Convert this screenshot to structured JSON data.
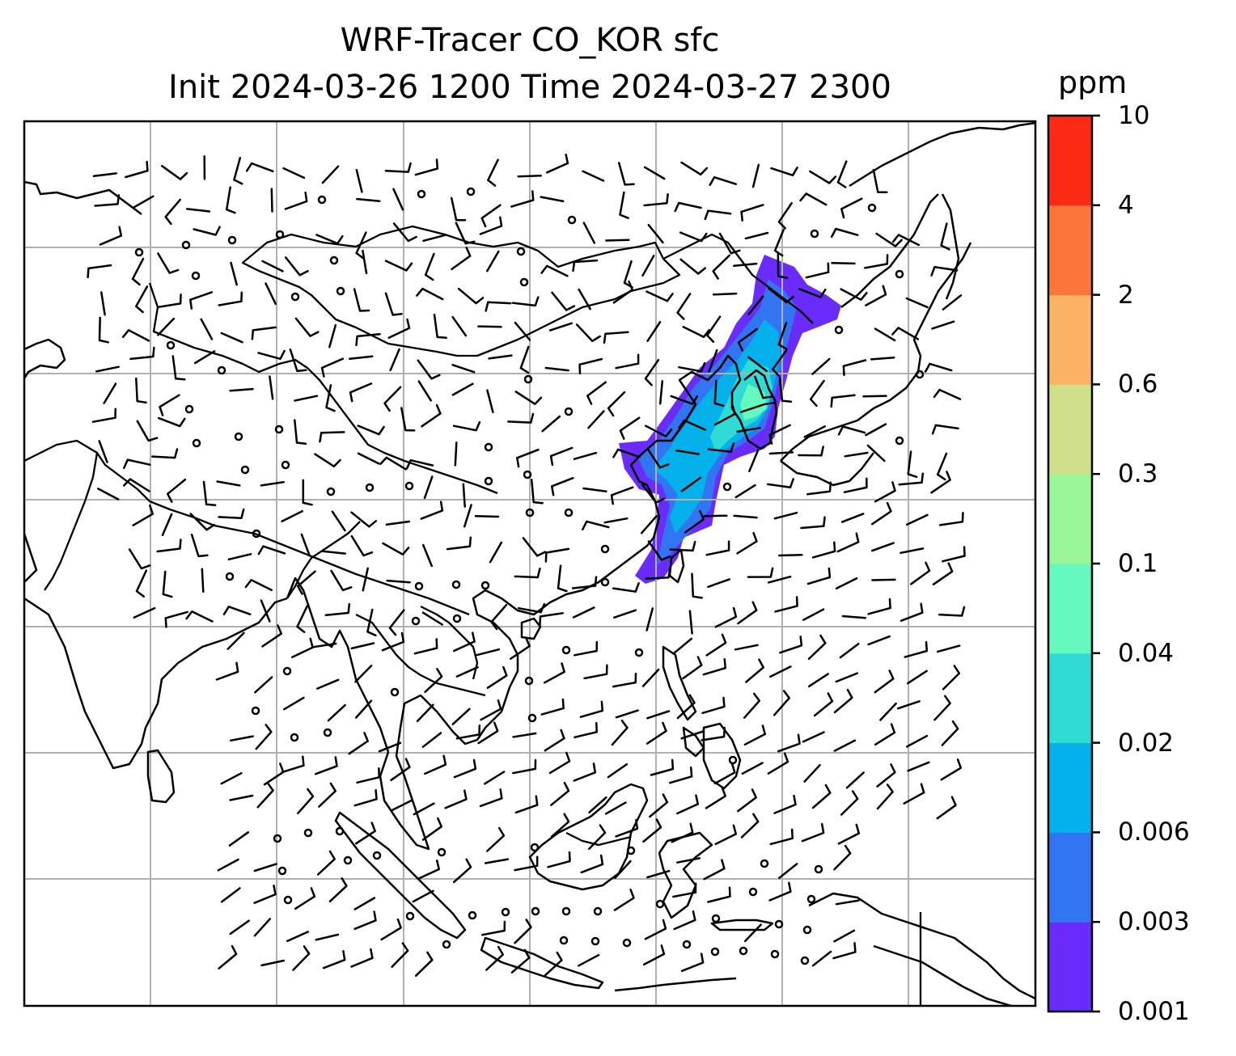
{
  "title": {
    "line1": "WRF-Tracer CO_KOR sfc",
    "line2": "Init 2024-03-26 1200 Time 2024-03-27 2300"
  },
  "colorbar": {
    "unit": "ppm",
    "levels": [
      "0.001",
      "0.003",
      "0.006",
      "0.02",
      "0.04",
      "0.1",
      "0.3",
      "0.6",
      "2",
      "4",
      "10"
    ],
    "colors": [
      "#6a2cfb",
      "#3275f2",
      "#04b1ea",
      "#2fdbd4",
      "#65f8bf",
      "#99f797",
      "#cfe08b",
      "#fcb265",
      "#fc7639",
      "#fc2a14"
    ]
  },
  "map": {
    "features": [
      "coastlines",
      "country-borders",
      "gridlines",
      "wind-barbs",
      "tracer-plume"
    ],
    "plume_colors": {
      "outer": "#6a2cfb",
      "low": "#3275f2",
      "mid": "#04b1ea",
      "core": "#2fdbd4",
      "peak": "#65f8bf"
    }
  }
}
